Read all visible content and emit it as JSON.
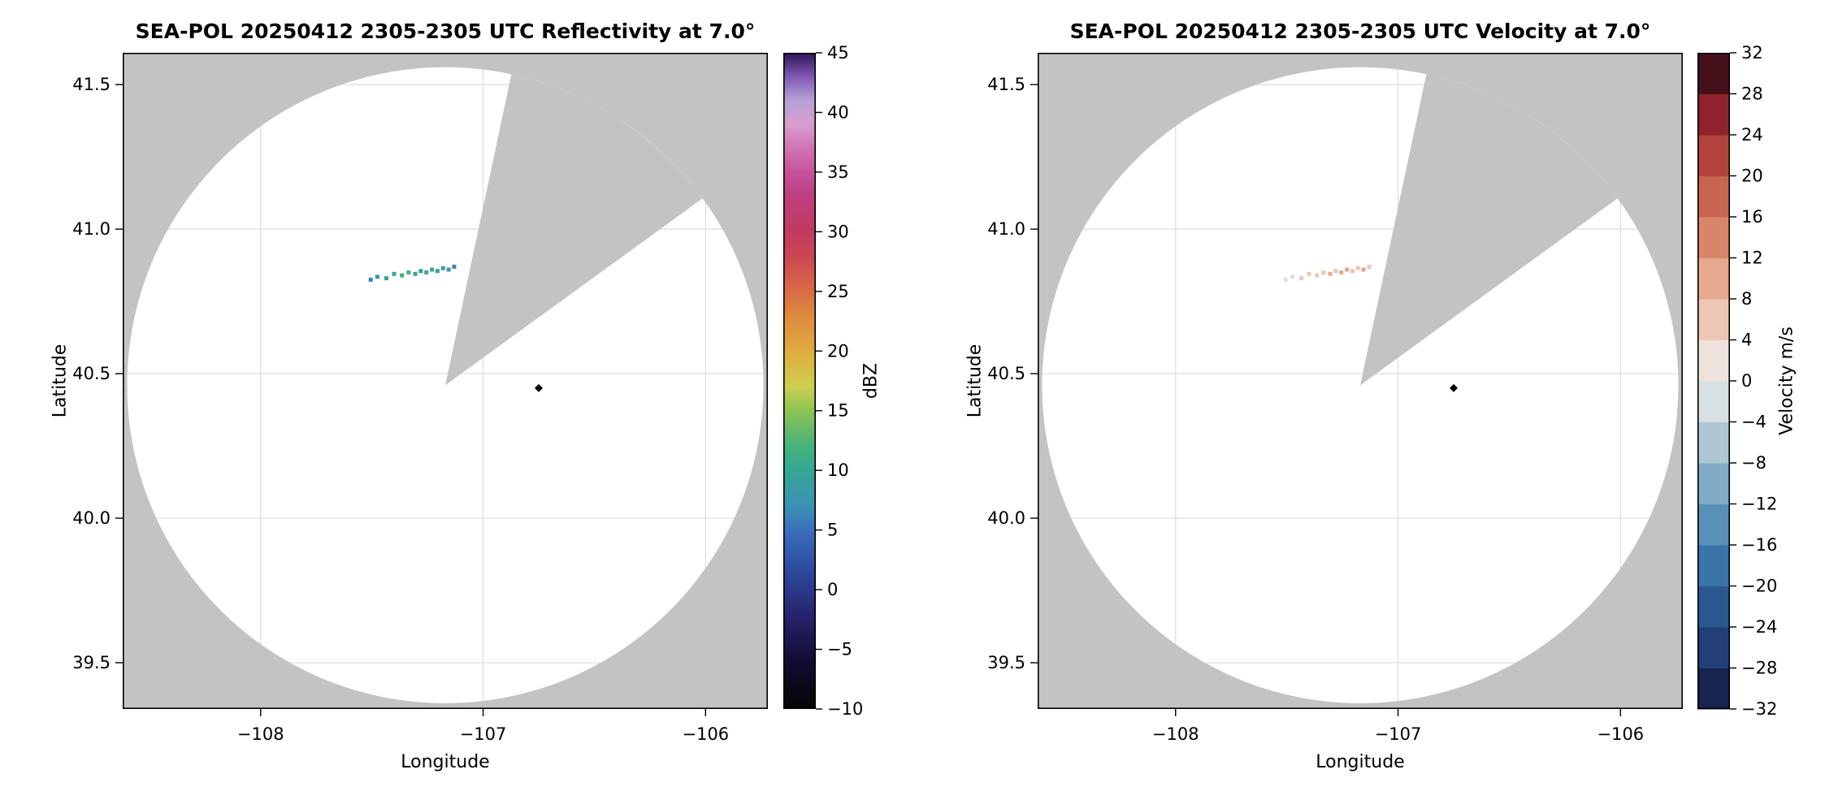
{
  "figure": {
    "background": "#ffffff",
    "masked_color": "#c3c3c3"
  },
  "chart_data": [
    {
      "type": "heatmap",
      "subtype": "radar-ppi",
      "title": "SEA-POL 20250412 2305-2305 UTC Reflectivity at 7.0°",
      "xlabel": "Longitude",
      "ylabel": "Latitude",
      "xlim": [
        -108.62,
        -105.72
      ],
      "ylim": [
        39.34,
        41.61
      ],
      "xticks": [
        -108,
        -107,
        -106
      ],
      "xtick_labels": [
        "−108",
        "−107",
        "−106"
      ],
      "yticks": [
        39.5,
        40.0,
        40.5,
        41.0,
        41.5
      ],
      "ytick_labels": [
        "39.5",
        "40.0",
        "40.5",
        "41.0",
        "41.5"
      ],
      "grid": true,
      "radar": {
        "center_lon": -107.17,
        "center_lat": 40.46,
        "radius_deg": 1.1,
        "missing_sector_azimuth_deg": [
          12,
          54
        ]
      },
      "colorbar": {
        "label": "dBZ",
        "min": -10,
        "max": 45,
        "ticks": [
          -10,
          -5,
          0,
          5,
          10,
          15,
          20,
          25,
          30,
          35,
          40,
          45
        ],
        "tick_labels": [
          "−10",
          "−5",
          "0",
          "5",
          "10",
          "15",
          "20",
          "25",
          "30",
          "35",
          "40",
          "45"
        ]
      },
      "marker": {
        "lon": -106.75,
        "lat": 40.45,
        "shape": "diamond",
        "color": "#000000"
      },
      "echo_format": [
        "lon",
        "lat",
        "value"
      ],
      "echoes": [
        [
          -107.505,
          40.825,
          6
        ],
        [
          -107.475,
          40.835,
          8
        ],
        [
          -107.435,
          40.83,
          9
        ],
        [
          -107.4,
          40.845,
          10
        ],
        [
          -107.365,
          40.84,
          11
        ],
        [
          -107.335,
          40.85,
          12
        ],
        [
          -107.305,
          40.845,
          10
        ],
        [
          -107.28,
          40.855,
          9
        ],
        [
          -107.255,
          40.85,
          11
        ],
        [
          -107.23,
          40.86,
          10
        ],
        [
          -107.205,
          40.855,
          9
        ],
        [
          -107.18,
          40.865,
          8
        ],
        [
          -107.155,
          40.86,
          7
        ],
        [
          -107.13,
          40.87,
          6
        ]
      ]
    },
    {
      "type": "heatmap",
      "subtype": "radar-ppi",
      "title": "SEA-POL 20250412 2305-2305 UTC Velocity at 7.0°",
      "xlabel": "Longitude",
      "ylabel": "Latitude",
      "xlim": [
        -108.62,
        -105.72
      ],
      "ylim": [
        39.34,
        41.61
      ],
      "xticks": [
        -108,
        -107,
        -106
      ],
      "xtick_labels": [
        "−108",
        "−107",
        "−106"
      ],
      "yticks": [
        39.5,
        40.0,
        40.5,
        41.0,
        41.5
      ],
      "ytick_labels": [
        "39.5",
        "40.0",
        "40.5",
        "41.0",
        "41.5"
      ],
      "grid": true,
      "radar": {
        "center_lon": -107.17,
        "center_lat": 40.46,
        "radius_deg": 1.1,
        "missing_sector_azimuth_deg": [
          12,
          54
        ]
      },
      "colorbar": {
        "label": "Velocity m/s",
        "min": -32,
        "max": 32,
        "step": 4,
        "ticks": [
          -32,
          -28,
          -24,
          -20,
          -16,
          -12,
          -8,
          -4,
          0,
          4,
          8,
          12,
          16,
          20,
          24,
          28,
          32
        ],
        "tick_labels": [
          "−32",
          "−28",
          "−24",
          "−20",
          "−16",
          "−12",
          "−8",
          "−4",
          "0",
          "4",
          "8",
          "12",
          "16",
          "20",
          "24",
          "28",
          "32"
        ]
      },
      "marker": {
        "lon": -106.75,
        "lat": 40.45,
        "shape": "diamond",
        "color": "#000000"
      },
      "echo_format": [
        "lon",
        "lat",
        "value"
      ],
      "echoes": [
        [
          -107.505,
          40.825,
          -3
        ],
        [
          -107.475,
          40.835,
          -4
        ],
        [
          -107.435,
          40.83,
          5
        ],
        [
          -107.4,
          40.845,
          6
        ],
        [
          -107.365,
          40.84,
          7
        ],
        [
          -107.335,
          40.85,
          6
        ],
        [
          -107.305,
          40.845,
          8
        ],
        [
          -107.28,
          40.855,
          7
        ],
        [
          -107.255,
          40.85,
          9
        ],
        [
          -107.23,
          40.86,
          8
        ],
        [
          -107.205,
          40.855,
          7
        ],
        [
          -107.18,
          40.865,
          6
        ],
        [
          -107.155,
          40.86,
          8
        ],
        [
          -107.13,
          40.87,
          5
        ]
      ]
    }
  ]
}
